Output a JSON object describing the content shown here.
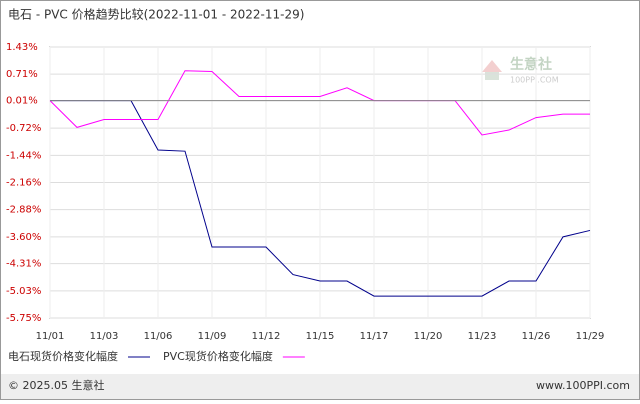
{
  "chart_data": {
    "type": "line",
    "title": "电石 - PVC 价格趋势比较(2022-11-01 - 2022-11-29)",
    "categories": [
      "11/01",
      null,
      "11/03",
      null,
      "11/06",
      null,
      "11/09",
      null,
      "11/12",
      null,
      "11/15",
      null,
      "11/17",
      null,
      "11/20",
      null,
      "11/23",
      null,
      "11/26",
      null,
      "11/29"
    ],
    "series": [
      {
        "name": "电石现货价格变化幅度",
        "color": "#00008b",
        "values": [
          0.01,
          0.01,
          0.01,
          0.01,
          -1.3,
          -1.33,
          -3.87,
          -3.87,
          -3.87,
          -4.6,
          -4.77,
          -4.77,
          -5.17,
          -5.17,
          -5.17,
          -5.17,
          -5.17,
          -4.77,
          -4.77,
          -3.6,
          -3.43
        ]
      },
      {
        "name": "PVC现货价格变化幅度",
        "color": "#ff00ff",
        "values": [
          0.01,
          -0.7,
          -0.49,
          -0.49,
          -0.49,
          0.8,
          0.78,
          0.12,
          0.12,
          0.12,
          0.12,
          0.35,
          0.01,
          0.01,
          0.01,
          0.01,
          -0.9,
          -0.77,
          -0.44,
          -0.35,
          -0.35
        ]
      }
    ],
    "ylim": [
      -5.75,
      1.43
    ],
    "yticks": [
      {
        "value": 1.43,
        "label": "1.43%"
      },
      {
        "value": 0.71,
        "label": "0.71%"
      },
      {
        "value": 0.01,
        "label": "0.01%"
      },
      {
        "value": -0.72,
        "label": "-0.72%"
      },
      {
        "value": -1.44,
        "label": "-1.44%"
      },
      {
        "value": -2.16,
        "label": "-2.16%"
      },
      {
        "value": -2.88,
        "label": "-2.88%"
      },
      {
        "value": -3.6,
        "label": "-3.60%"
      },
      {
        "value": -4.31,
        "label": "-4.31%"
      },
      {
        "value": -5.03,
        "label": "-5.03%"
      },
      {
        "value": -5.75,
        "label": "-5.75%"
      }
    ],
    "grid": true,
    "watermark": {
      "name": "生意社",
      "site": "100PPI.COM"
    },
    "footer": {
      "copyright": "© 2025.05 生意社",
      "url": "www.100PPI.com"
    }
  }
}
